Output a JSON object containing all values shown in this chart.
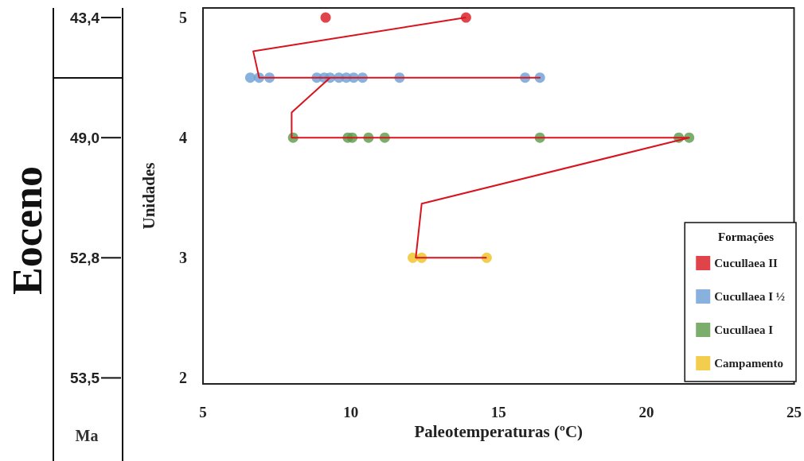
{
  "chart_data": {
    "type": "scatter",
    "xlabel": "Paleotemperaturas (ºC)",
    "ylabel": "Unidades",
    "legend_title": "Formações",
    "annotations": [
      "Eoceno",
      "Ma",
      "43,4",
      "49,0",
      "52,8",
      "53,5"
    ],
    "xlim": [
      5,
      25
    ],
    "xticks": [
      5,
      10,
      15,
      20,
      25
    ],
    "ylim": [
      1.95,
      5.08
    ],
    "yticks": [
      2,
      3,
      4,
      5
    ],
    "grid": false,
    "legend": "bottom right",
    "marker": "circle",
    "series": [
      {
        "name": "Cucullaea II",
        "color": "#d9141e",
        "x": [
          9.15,
          13.9
        ],
        "values": [
          5,
          5
        ]
      },
      {
        "name": "Cucullaea I ½",
        "color": "#6a9fd4",
        "x": [
          6.6,
          6.9,
          7.25,
          8.85,
          9.1,
          9.3,
          9.6,
          9.85,
          10.1,
          10.4,
          11.65,
          15.9,
          16.4
        ],
        "values": [
          4.5,
          4.5,
          4.5,
          4.5,
          4.5,
          4.5,
          4.5,
          4.5,
          4.5,
          4.5,
          4.5,
          4.5,
          4.5
        ]
      },
      {
        "name": "Cucullaea I",
        "color": "#5a9a48",
        "x": [
          8.05,
          9.9,
          10.05,
          10.6,
          11.15,
          16.4,
          21.1,
          21.45
        ],
        "values": [
          4,
          4,
          4,
          4,
          4,
          4,
          4,
          4
        ]
      },
      {
        "name": "Campamento",
        "color": "#f0c020",
        "x": [
          12.1,
          12.4,
          14.6
        ],
        "values": [
          3,
          3,
          3
        ]
      },
      {
        "type": "line",
        "color": "#d9141e",
        "marker": "none",
        "line_style": "solid",
        "x": [
          14.6,
          12.2,
          12.4,
          21.45,
          8.0,
          8.0,
          9.3,
          16.4,
          6.9,
          6.7,
          13.9
        ],
        "values": [
          3,
          3,
          3.45,
          4,
          4,
          4.21,
          4.5,
          4.5,
          4.5,
          4.72,
          5
        ]
      }
    ]
  }
}
